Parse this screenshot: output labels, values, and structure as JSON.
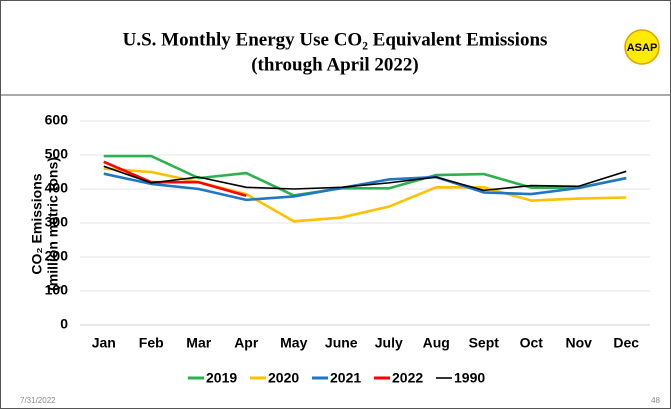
{
  "chart_data": {
    "type": "line",
    "title": "U.S. Monthly Energy Use CO₂ Equivalent Emissions",
    "subtitle": "(through April 2022)",
    "badge": "ASAP",
    "ylabel": [
      "CO₂ Emissions",
      "(million metric tons)"
    ],
    "categories": [
      "Jan",
      "Feb",
      "Mar",
      "Apr",
      "May",
      "June",
      "July",
      "Aug",
      "Sept",
      "Oct",
      "Nov",
      "Dec"
    ],
    "series": [
      {
        "name": "2019",
        "color": "#2eb050",
        "values": [
          497,
          497,
          432,
          447,
          381,
          402,
          402,
          441,
          444,
          404,
          404,
          432
        ]
      },
      {
        "name": "2020",
        "color": "#ffc000",
        "values": [
          460,
          450,
          420,
          385,
          305,
          316,
          348,
          405,
          405,
          366,
          372,
          375
        ]
      },
      {
        "name": "2021",
        "color": "#1f77c4",
        "values": [
          445,
          415,
          400,
          368,
          378,
          403,
          428,
          435,
          390,
          385,
          403,
          432
        ]
      },
      {
        "name": "2022",
        "color": "#ff0000",
        "values": [
          480,
          420,
          420,
          380,
          null,
          null,
          null,
          null,
          null,
          null,
          null,
          null
        ]
      },
      {
        "name": "1990",
        "color": "#000000",
        "values": [
          467,
          418,
          435,
          405,
          400,
          405,
          418,
          435,
          396,
          410,
          408,
          452
        ]
      }
    ],
    "ylim": [
      0,
      600
    ],
    "yticks": [
      0,
      100,
      200,
      300,
      400,
      500,
      600
    ],
    "grid": true,
    "legend": "bottom",
    "date": "7/31/2022",
    "page_number": "48"
  }
}
